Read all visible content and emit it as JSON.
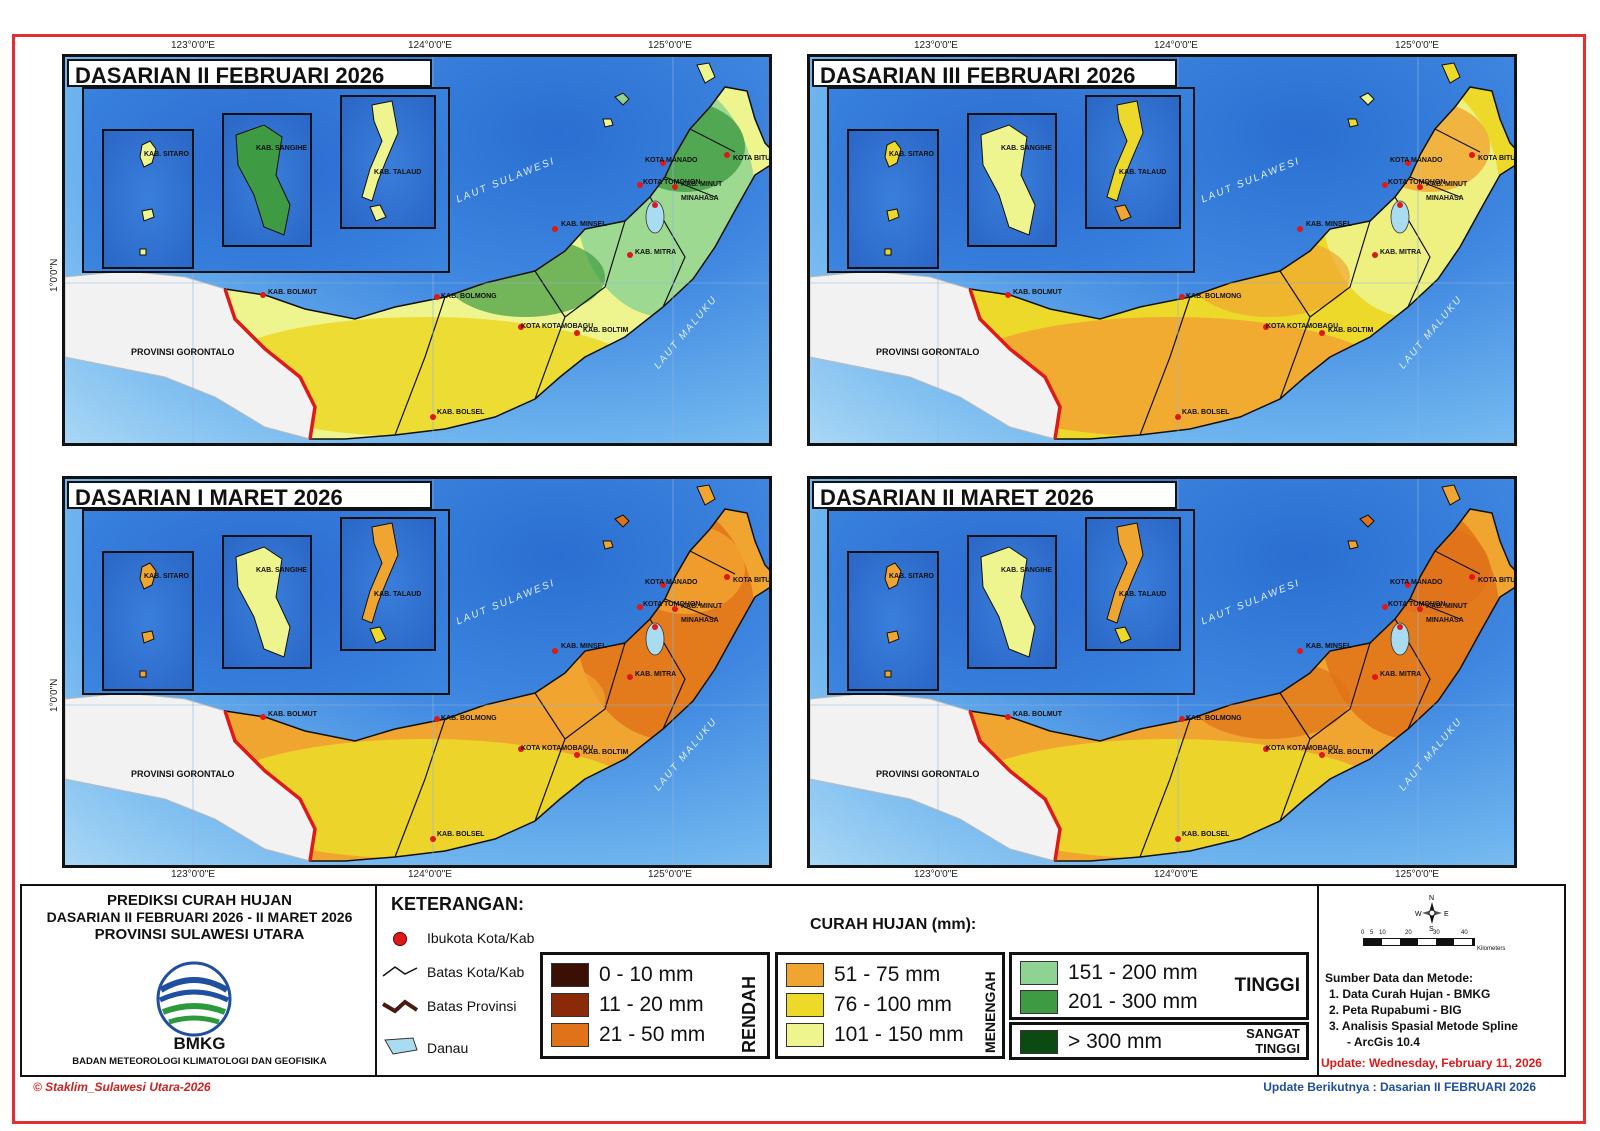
{
  "panels": [
    {
      "title": "DASARIAN II FEBRUARI 2026",
      "scheme": "green"
    },
    {
      "title": "DASARIAN III FEBRUARI 2026",
      "scheme": "yellow"
    },
    {
      "title": "DASARIAN I MARET 2026",
      "scheme": "orange"
    },
    {
      "title": "DASARIAN II MARET 2026",
      "scheme": "orange2"
    }
  ],
  "axes": {
    "lon": [
      "123°0'0\"E",
      "124°0'0\"E",
      "125°0'0\"E"
    ],
    "lat": "1°0'0\"N"
  },
  "map_labels": {
    "laut_sulawesi": "LAUT SULAWESI",
    "laut_maluku": "LAUT MALUKU",
    "gorontalo": "PROVINSI GORONTALO",
    "sitaro": "KAB. SITARO",
    "sangihe": "KAB. SANGIHE",
    "talaud": "KAB. TALAUD",
    "manado": "KOTA MANADO",
    "minut": "KAB. MINUT",
    "bitung": "KOTA BITUNG",
    "tomohon": "KOTA TOMOHON",
    "minahasa": "MINAHASA",
    "minsel": "KAB. MINSEL",
    "mitra": "KAB. MITRA",
    "bolmut": "KAB. BOLMUT",
    "bolmong": "KAB. BOLMONG",
    "kotamobagu": "KOTA KOTAMOBAGU",
    "boltim": "KAB. BOLTIM",
    "bolsel": "KAB. BOLSEL"
  },
  "info": {
    "title_line1": "PREDIKSI CURAH HUJAN",
    "title_line2": "DASARIAN II FEBRUARI 2026 - II MARET 2026",
    "title_line3": "PROVINSI SULAWESI UTARA",
    "logo_text": "BMKG",
    "agency": "BADAN METEOROLOGI KLIMATOLOGI DAN GEOFISIKA"
  },
  "legend": {
    "heading": "KETERANGAN:",
    "items": [
      "Ibukota Kota/Kab",
      "Batas Kota/Kab",
      "Batas Provinsi",
      "Danau"
    ],
    "rain_heading": "CURAH HUJAN (mm):",
    "classes": [
      {
        "label": "0 - 10 mm",
        "color": "#3a0f04"
      },
      {
        "label": "11 - 20 mm",
        "color": "#8a2a08"
      },
      {
        "label": "21 - 50 mm",
        "color": "#e0731a"
      },
      {
        "label": "51 - 75 mm",
        "color": "#f1a531"
      },
      {
        "label": "76 - 100 mm",
        "color": "#ecd92a"
      },
      {
        "label": "101 - 150 mm",
        "color": "#eef58e"
      },
      {
        "label": "151 - 200 mm",
        "color": "#8fd393"
      },
      {
        "label": "201 - 300 mm",
        "color": "#3e9a43"
      },
      {
        "label": "> 300 mm",
        "color": "#0c4a14"
      }
    ],
    "rendah": "RENDAH",
    "menengah": "MENENGAH",
    "tinggi": "TINGGI",
    "sangat_tinggi_1": "SANGAT",
    "sangat_tinggi_2": "TINGGI"
  },
  "scale": {
    "ticks": [
      "0",
      "5",
      "10",
      "20",
      "30",
      "40"
    ],
    "unit": "Kilometers"
  },
  "sources": {
    "heading": "Sumber Data dan Metode:",
    "items": [
      "1. Data Curah Hujan - BMKG",
      "2. Peta Rupabumi - BIG",
      "3. Analisis Spasial Metode Spline",
      "- ArcGis 10.4"
    ],
    "update": "Update: Wednesday, February 11, 2026"
  },
  "footer": {
    "credit": "© Staklim_Sulawesi Utara-2026",
    "next": "Update Berikutnya : Dasarian II FEBRUARI 2026"
  },
  "colors": {
    "border": "#e23030",
    "sea": "#3e86e0",
    "capital": "#e01818",
    "province_border": "#e01818",
    "lake": "#a9dcf0"
  }
}
